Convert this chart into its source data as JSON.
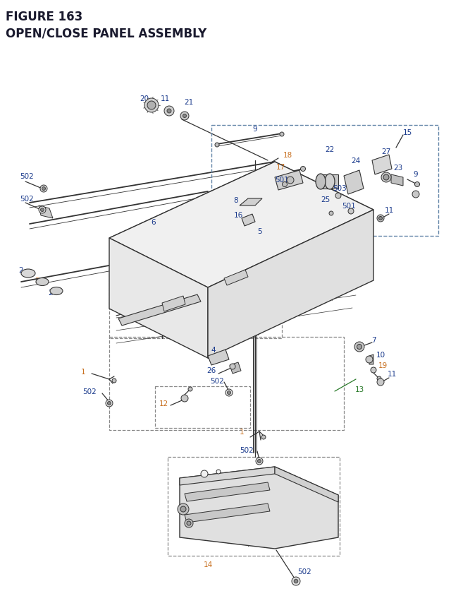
{
  "title_line1": "FIGURE 163",
  "title_line2": "OPEN/CLOSE PANEL ASSEMBLY",
  "title_color": "#1a1a2e",
  "title_fontsize": 12,
  "bg_color": "#ffffff",
  "blue": "#1a3a8c",
  "orange": "#c87020",
  "green": "#2a7a2a",
  "black": "#333333",
  "gray": "#888888"
}
